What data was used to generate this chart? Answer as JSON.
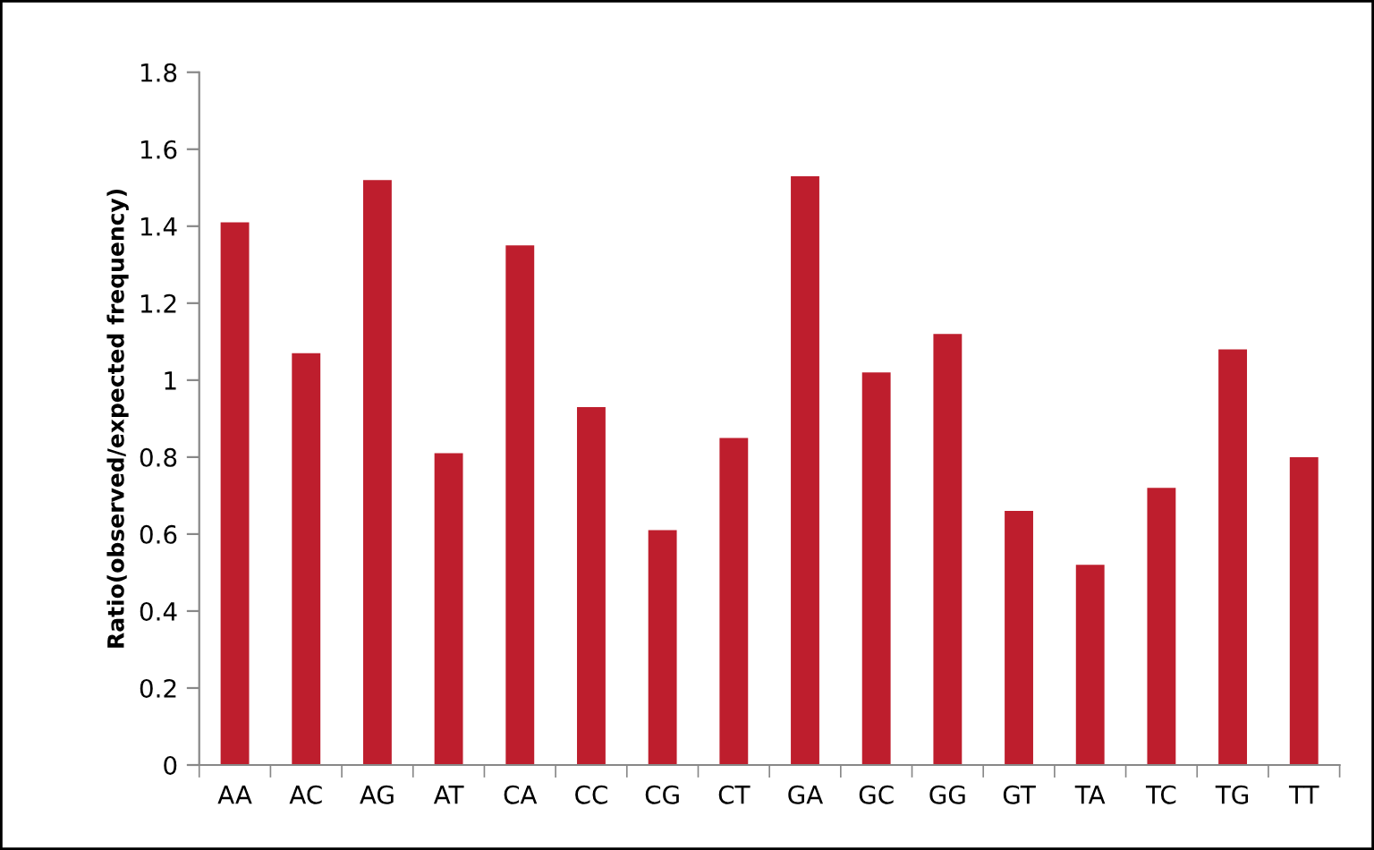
{
  "chart_data": {
    "type": "bar",
    "ylabel": "Ratio(observed/expected frequency)",
    "categories": [
      "AA",
      "AC",
      "AG",
      "AT",
      "CA",
      "CC",
      "CG",
      "CT",
      "GA",
      "GC",
      "GG",
      "GT",
      "TA",
      "TC",
      "TG",
      "TT"
    ],
    "values": [
      1.41,
      1.07,
      1.52,
      0.81,
      1.35,
      0.93,
      0.61,
      0.85,
      1.53,
      1.02,
      1.12,
      0.66,
      0.52,
      0.72,
      1.08,
      0.8
    ],
    "color": "#be1e2d",
    "ylim": [
      0,
      1.8
    ],
    "yticks": [
      0,
      0.2,
      0.4,
      0.6,
      0.8,
      {
        "value": 1,
        "label": "1"
      },
      1.2,
      1.4,
      1.6,
      1.8
    ],
    "grid": false
  }
}
